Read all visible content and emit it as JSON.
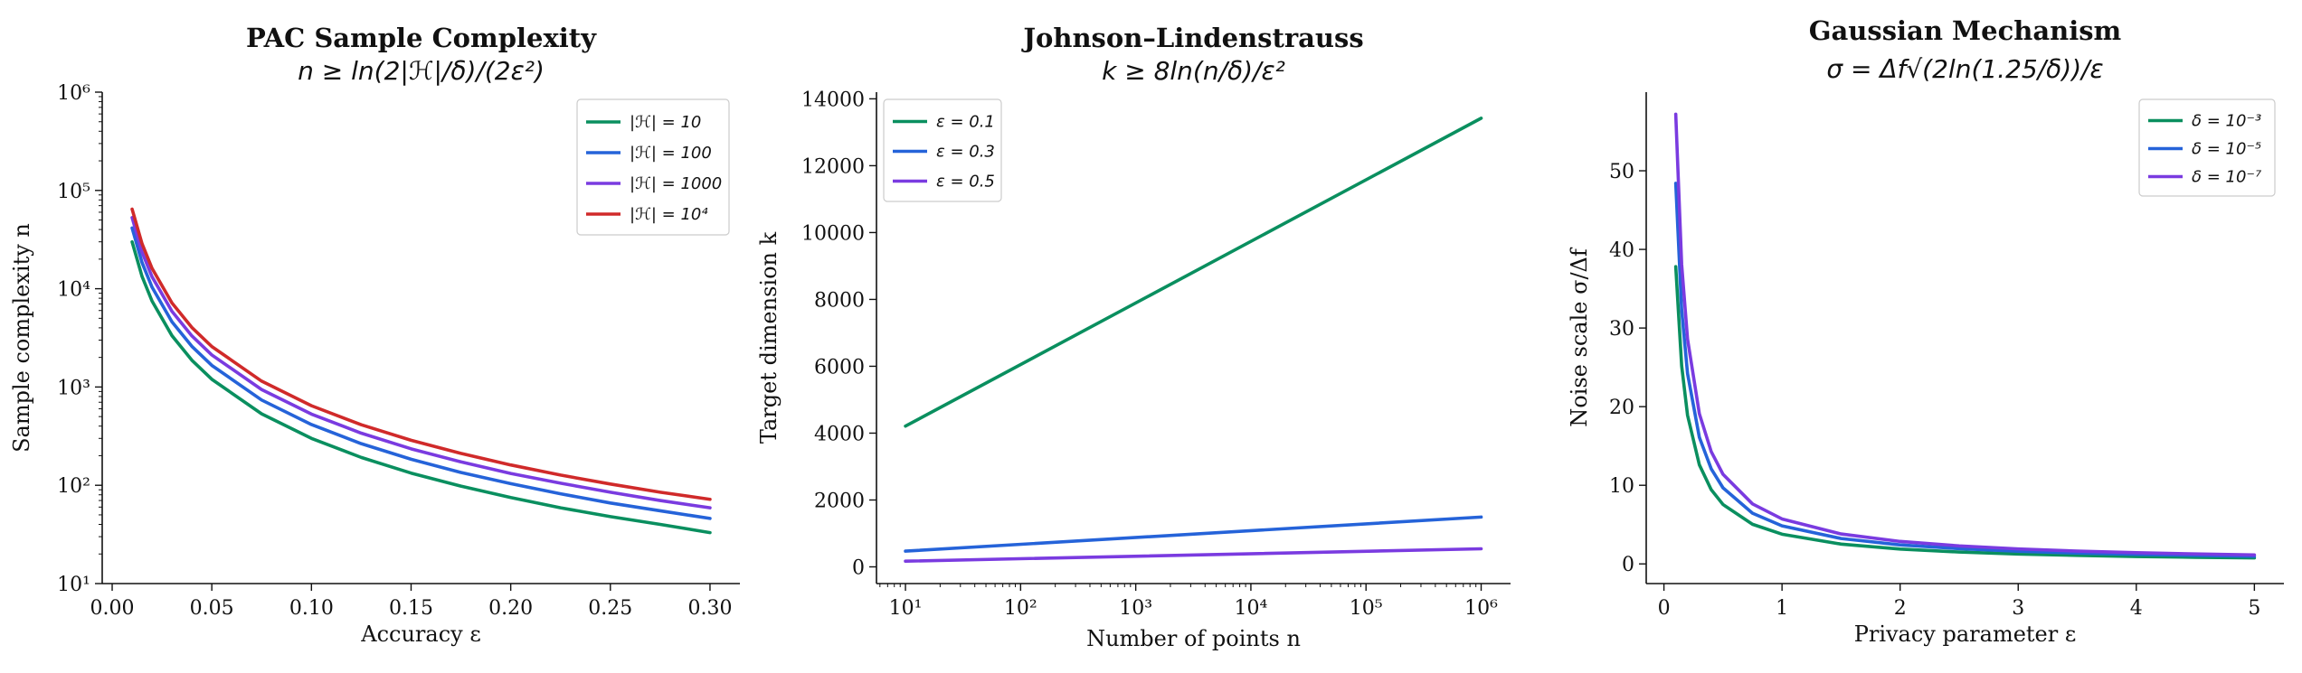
{
  "chart_data": [
    {
      "type": "line",
      "title": "PAC Sample Complexity",
      "subtitle": "n ≥ ln(2|ℋ|/δ)/(2ε²)",
      "xlabel": "Accuracy ε",
      "ylabel": "Sample complexity n",
      "yscale": "log",
      "xlim": [
        -0.005,
        0.315
      ],
      "ylim": [
        10,
        1000000
      ],
      "xticks": [
        0.0,
        0.05,
        0.1,
        0.15,
        0.2,
        0.25,
        0.3
      ],
      "xtick_labels": [
        "0.00",
        "0.05",
        "0.10",
        "0.15",
        "0.20",
        "0.25",
        "0.30"
      ],
      "yticks": [
        10,
        100,
        1000,
        10000,
        100000,
        1000000
      ],
      "ytick_labels": [
        "10¹",
        "10²",
        "10³",
        "10⁴",
        "10⁵",
        "10⁶"
      ],
      "legend": "top-right",
      "grid": false,
      "x": [
        0.01,
        0.015,
        0.02,
        0.03,
        0.04,
        0.05,
        0.075,
        0.1,
        0.125,
        0.15,
        0.175,
        0.2,
        0.225,
        0.25,
        0.275,
        0.3
      ],
      "series": [
        {
          "name": "|ℋ| = 10",
          "color": "#0a8f5f",
          "values": [
            29957,
            13314,
            7489,
            3329,
            1872,
            1198,
            533,
            300,
            192,
            133,
            98,
            75,
            59,
            48,
            40,
            33
          ]
        },
        {
          "name": "|ℋ| = 100",
          "color": "#2563d9",
          "values": [
            41470,
            18431,
            10368,
            4608,
            2592,
            1659,
            737,
            415,
            265,
            184,
            135,
            104,
            82,
            66,
            55,
            46
          ]
        },
        {
          "name": "|ℋ| = 1000",
          "color": "#7a3be0",
          "values": [
            52983,
            23548,
            13246,
            5887,
            3311,
            2119,
            942,
            530,
            339,
            235,
            173,
            132,
            105,
            85,
            70,
            59
          ]
        },
        {
          "name": "|ℋ| = 10⁴",
          "color": "#d02a2a",
          "values": [
            64496,
            28665,
            16124,
            7166,
            4031,
            2580,
            1147,
            645,
            413,
            287,
            211,
            161,
            127,
            103,
            85,
            72
          ]
        }
      ]
    },
    {
      "type": "line",
      "title": "Johnson–Lindenstrauss",
      "subtitle": "k ≥ 8ln(n/δ)/ε²",
      "xlabel": "Number of points n",
      "ylabel": "Target dimension k",
      "xscale": "log",
      "xlim": [
        5.6,
        1800000
      ],
      "ylim": [
        -500,
        14200
      ],
      "xticks": [
        10,
        100,
        1000,
        10000,
        100000,
        1000000
      ],
      "xtick_labels": [
        "10¹",
        "10²",
        "10³",
        "10⁴",
        "10⁵",
        "10⁶"
      ],
      "yticks": [
        0,
        2000,
        4000,
        6000,
        8000,
        10000,
        12000,
        14000
      ],
      "ytick_labels": [
        "0",
        "2000",
        "4000",
        "6000",
        "8000",
        "10000",
        "12000",
        "14000"
      ],
      "legend": "top-left",
      "grid": false,
      "x": [
        10,
        1000000
      ],
      "series": [
        {
          "name": "ε = 0.1",
          "color": "#0a8f5f",
          "values": [
            4210,
            13420
          ]
        },
        {
          "name": "ε = 0.3",
          "color": "#2563d9",
          "values": [
            470,
            1490
          ]
        },
        {
          "name": "ε = 0.5",
          "color": "#7a3be0",
          "values": [
            170,
            540
          ]
        }
      ]
    },
    {
      "type": "line",
      "title": "Gaussian Mechanism",
      "subtitle": "σ = Δf√(2ln(1.25/δ))/ε",
      "xlabel": "Privacy parameter ε",
      "ylabel": "Noise scale σ/Δf",
      "xlim": [
        -0.15,
        5.25
      ],
      "ylim": [
        -2.5,
        60
      ],
      "xticks": [
        0,
        1,
        2,
        3,
        4,
        5
      ],
      "xtick_labels": [
        "0",
        "1",
        "2",
        "3",
        "4",
        "5"
      ],
      "yticks": [
        0,
        10,
        20,
        30,
        40,
        50
      ],
      "ytick_labels": [
        "0",
        "10",
        "20",
        "30",
        "40",
        "50"
      ],
      "legend": "top-right",
      "grid": false,
      "x": [
        0.1,
        0.15,
        0.2,
        0.3,
        0.4,
        0.5,
        0.75,
        1,
        1.5,
        2,
        2.5,
        3,
        3.5,
        4,
        4.5,
        5
      ],
      "series": [
        {
          "name": "δ = 10⁻³",
          "color": "#0a8f5f",
          "values": [
            37.8,
            25.2,
            18.9,
            12.6,
            9.45,
            7.56,
            5.04,
            3.78,
            2.52,
            1.89,
            1.51,
            1.26,
            1.08,
            0.94,
            0.84,
            0.76
          ]
        },
        {
          "name": "δ = 10⁻⁵",
          "color": "#2563d9",
          "values": [
            48.4,
            32.3,
            24.2,
            16.1,
            12.1,
            9.68,
            6.45,
            4.84,
            3.23,
            2.42,
            1.94,
            1.61,
            1.38,
            1.21,
            1.08,
            0.97
          ]
        },
        {
          "name": "δ = 10⁻⁷",
          "color": "#7a3be0",
          "values": [
            57.2,
            38.1,
            28.6,
            19.1,
            14.3,
            11.4,
            7.63,
            5.72,
            3.81,
            2.86,
            2.29,
            1.91,
            1.63,
            1.43,
            1.27,
            1.14
          ]
        }
      ]
    }
  ]
}
